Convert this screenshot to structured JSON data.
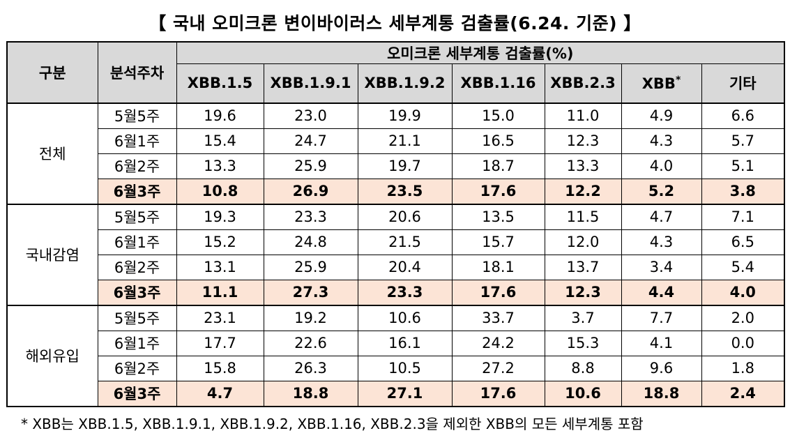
{
  "title": "【 국내 오미크론 변이바이러스 세부계통 검출률(6.24. 기준) 】",
  "header": {
    "category": "구분",
    "week": "분석주차",
    "rate_header": "오미크론 세부계통 검출률(%)",
    "columns": [
      "XBB.1.5",
      "XBB.1.9.1",
      "XBB.1.9.2",
      "XBB.1.16",
      "XBB.2.3",
      "XBB",
      "기타"
    ],
    "xbb_marker": "*"
  },
  "groups": [
    {
      "name": "전체",
      "rows": [
        {
          "week": "5월5주",
          "values": [
            "19.6",
            "23.0",
            "19.9",
            "15.0",
            "11.0",
            "4.9",
            "6.6"
          ]
        },
        {
          "week": "6월1주",
          "values": [
            "15.4",
            "24.7",
            "21.1",
            "16.5",
            "12.3",
            "4.3",
            "5.7"
          ]
        },
        {
          "week": "6월2주",
          "values": [
            "13.3",
            "25.9",
            "19.7",
            "18.7",
            "13.3",
            "4.0",
            "5.1"
          ]
        },
        {
          "week": "6월3주",
          "values": [
            "10.8",
            "26.9",
            "23.5",
            "17.6",
            "12.2",
            "5.2",
            "3.8"
          ]
        }
      ]
    },
    {
      "name": "국내감염",
      "rows": [
        {
          "week": "5월5주",
          "values": [
            "19.3",
            "23.3",
            "20.6",
            "13.5",
            "11.5",
            "4.7",
            "7.1"
          ]
        },
        {
          "week": "6월1주",
          "values": [
            "15.2",
            "24.8",
            "21.5",
            "15.7",
            "12.0",
            "4.3",
            "6.5"
          ]
        },
        {
          "week": "6월2주",
          "values": [
            "13.1",
            "25.9",
            "20.4",
            "18.1",
            "13.7",
            "3.4",
            "5.4"
          ]
        },
        {
          "week": "6월3주",
          "values": [
            "11.1",
            "27.3",
            "23.3",
            "17.6",
            "12.3",
            "4.4",
            "4.0"
          ]
        }
      ]
    },
    {
      "name": "해외유입",
      "rows": [
        {
          "week": "5월5주",
          "values": [
            "23.1",
            "19.2",
            "10.6",
            "33.7",
            "3.7",
            "7.7",
            "2.0"
          ]
        },
        {
          "week": "6월1주",
          "values": [
            "17.7",
            "22.6",
            "16.1",
            "24.2",
            "15.3",
            "4.1",
            "0.0"
          ]
        },
        {
          "week": "6월2주",
          "values": [
            "15.8",
            "26.3",
            "10.5",
            "27.2",
            "8.8",
            "9.6",
            "1.8"
          ]
        },
        {
          "week": "6월3주",
          "values": [
            "4.7",
            "18.8",
            "27.1",
            "17.6",
            "10.6",
            "18.8",
            "2.4"
          ]
        }
      ]
    }
  ],
  "colors": {
    "header_bg": "#d9d9d9",
    "highlight_bg": "#fce4d6"
  },
  "footnote": "* XBB는 XBB.1.5, XBB.1.9.1, XBB.1.9.2, XBB.1.16, XBB.2.3을 제외한 XBB의 모든 세부계통 포함"
}
